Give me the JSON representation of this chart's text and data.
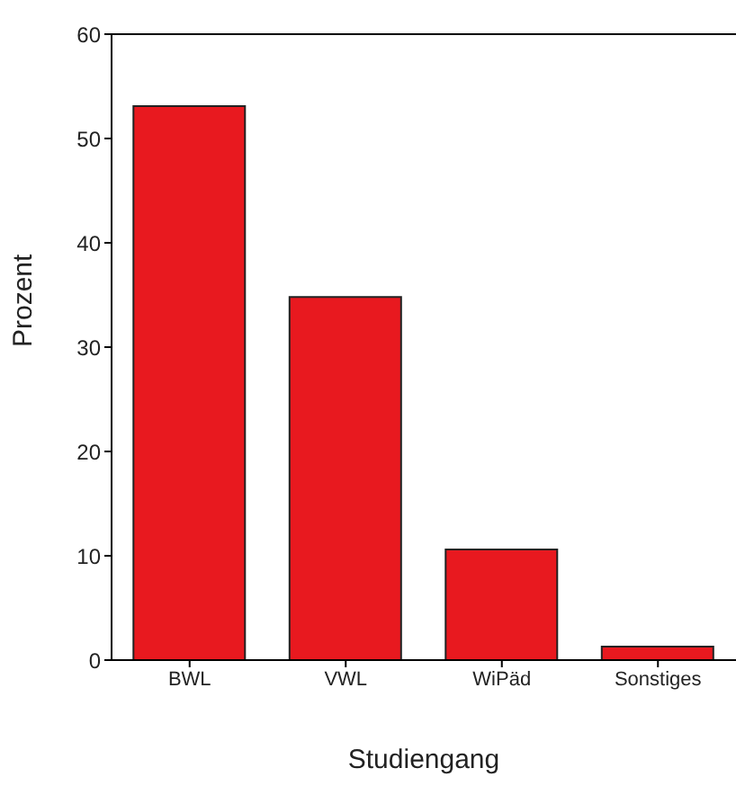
{
  "chart_data": {
    "type": "bar",
    "xlabel": "Studiengang",
    "ylabel": "Prozent",
    "categories": [
      "BWL",
      "VWL",
      "WiPäd",
      "Sonstiges"
    ],
    "values": [
      53.1,
      34.8,
      10.6,
      1.3
    ],
    "color": "#e8191f",
    "ylim": [
      0,
      60
    ],
    "yticks": [
      0,
      10,
      20,
      30,
      40,
      50,
      60
    ],
    "grid": false
  }
}
